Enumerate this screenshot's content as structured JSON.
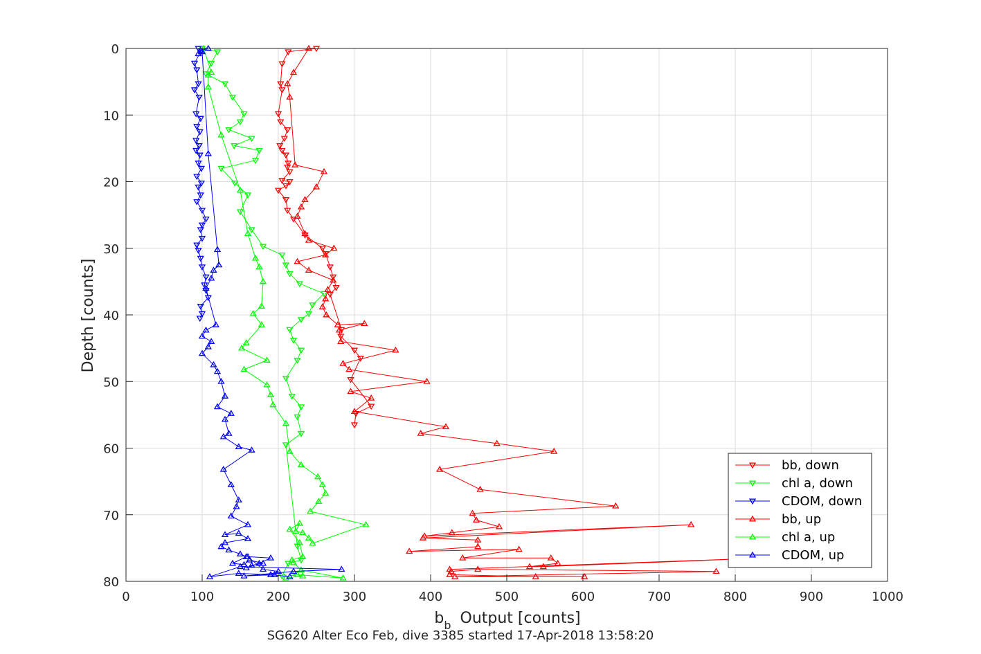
{
  "chart_data": {
    "type": "line",
    "xlabel_base": "b",
    "xlabel_sub": "b",
    "xlabel_rest": "Output [counts]",
    "ylabel": "Depth [counts]",
    "caption": "SG620 Alter Eco Feb, dive 3385 started 17-Apr-2018 13:58:20",
    "xlim": [
      0,
      1000
    ],
    "ylim": [
      0,
      80
    ],
    "y_reversed": true,
    "grid": true,
    "legend_position": "bottom-right",
    "x_ticks": [
      "0",
      "100",
      "200",
      "300",
      "400",
      "500",
      "600",
      "700",
      "800",
      "900",
      "1000"
    ],
    "y_ticks": [
      "0",
      "10",
      "20",
      "30",
      "40",
      "50",
      "60",
      "70",
      "80"
    ],
    "series": [
      {
        "name": "bb, down",
        "color": "#ff0000",
        "marker": "down",
        "x": [
          250,
          213,
          205,
          203,
          205,
          200,
          203,
          212,
          208,
          202,
          205,
          210,
          213,
          212,
          215,
          205,
          215,
          210,
          200,
          210,
          212,
          220,
          235,
          258,
          262,
          268,
          272,
          276,
          268,
          283,
          282,
          300,
          308,
          295,
          322,
          302,
          300
        ],
        "y": [
          0,
          0.5,
          2.3,
          5.3,
          6.2,
          9.8,
          11,
          12.2,
          13.5,
          14.6,
          15.3,
          16,
          17.2,
          17.8,
          18.5,
          19.8,
          20,
          20.6,
          21.3,
          22.7,
          24.3,
          25.6,
          28,
          30,
          30.8,
          32.8,
          34.3,
          35.9,
          36.9,
          42.2,
          43.2,
          45.3,
          46.5,
          49.7,
          53.7,
          54.8,
          56.5
        ]
      },
      {
        "name": "chl a, down",
        "color": "#00ff00",
        "marker": "down",
        "x": [
          100,
          120,
          112,
          105,
          130,
          140,
          155,
          150,
          135,
          165,
          142,
          175,
          170,
          125,
          143,
          160,
          150,
          165,
          180,
          205,
          210,
          215,
          228,
          260,
          245,
          240,
          230,
          215,
          220,
          230,
          225,
          210,
          218,
          230,
          225,
          230,
          210,
          225,
          230,
          213,
          205
        ],
        "y": [
          0,
          0.5,
          2.2,
          3.8,
          5.3,
          7.3,
          9.8,
          11,
          12.2,
          13.5,
          14.6,
          15.3,
          16.8,
          18,
          20.2,
          22,
          24.5,
          27.2,
          29.7,
          31,
          32.5,
          33.8,
          35.3,
          36.8,
          38.5,
          39.8,
          40.7,
          42.2,
          43.8,
          45.3,
          46.8,
          49.5,
          52.2,
          53.8,
          55.3,
          57.8,
          59.5,
          74.7,
          76.8,
          77.3,
          79.2
        ]
      },
      {
        "name": "CDOM, down",
        "color": "#0000ff",
        "marker": "down",
        "x": [
          95,
          98,
          90,
          93,
          95,
          90,
          96,
          92,
          98,
          93,
          97,
          92,
          96,
          92,
          97,
          95,
          99,
          93,
          99,
          95,
          98,
          93,
          100,
          105,
          100,
          98,
          100,
          93,
          95,
          98,
          100,
          105,
          103,
          105,
          108,
          98,
          100,
          97
        ],
        "y": [
          0,
          0.5,
          2.2,
          3.2,
          5.3,
          6.2,
          7.3,
          9.8,
          10.5,
          11.7,
          12.5,
          13.8,
          14.6,
          15.3,
          16,
          17.2,
          18,
          19.2,
          20.2,
          20.8,
          22,
          23,
          24.3,
          25.6,
          26.5,
          27.2,
          28.5,
          29.5,
          30.3,
          31.5,
          32.8,
          34.3,
          35.5,
          36.3,
          37.4,
          38.7,
          39.8,
          40.5
        ]
      },
      {
        "name": "bb, up",
        "color": "#ff0000",
        "marker": "up",
        "x": [
          240,
          220,
          212,
          215,
          222,
          260,
          250,
          235,
          230,
          225,
          235,
          240,
          273,
          262,
          225,
          240,
          272,
          265,
          262,
          258,
          263,
          278,
          313,
          280,
          282,
          354,
          285,
          293,
          395,
          295,
          322,
          300,
          420,
          387,
          487,
          562,
          412,
          465,
          643,
          455,
          460,
          490,
          428,
          392,
          742,
          390,
          462,
          462,
          372,
          516,
          442,
          558,
          567,
          530,
          548,
          838,
          425,
          427,
          462,
          775,
          432,
          602,
          538,
          425
        ],
        "y": [
          0,
          3.6,
          5.3,
          7.3,
          17.5,
          18.5,
          20.8,
          22.7,
          23.8,
          25.2,
          27.8,
          28.8,
          30,
          31,
          32,
          33.3,
          34.8,
          36.2,
          37.6,
          38.8,
          40,
          41.5,
          41.3,
          42.3,
          44,
          45.3,
          47.3,
          48.2,
          50,
          51.5,
          52.5,
          54.5,
          56.8,
          57.8,
          59.3,
          60.5,
          63.2,
          66.2,
          68.7,
          69.8,
          70.8,
          71.8,
          72.7,
          73.2,
          71.5,
          73.5,
          73.8,
          74.8,
          75.5,
          75.2,
          76.5,
          76.5,
          77.3,
          77.8,
          77.8,
          76.5,
          78.2,
          78.5,
          78.2,
          78.5,
          79.3,
          79.3,
          79.3,
          79
        ]
      },
      {
        "name": "chl a, up",
        "color": "#00ff00",
        "marker": "up",
        "x": [
          102,
          112,
          108,
          108,
          125,
          150,
          160,
          170,
          175,
          180,
          178,
          167,
          178,
          158,
          152,
          185,
          155,
          185,
          190,
          193,
          210,
          215,
          230,
          252,
          258,
          262,
          253,
          242,
          315,
          245,
          240,
          232,
          223,
          228,
          215,
          228,
          232,
          218,
          220,
          230,
          285,
          225,
          218,
          232,
          210
        ],
        "y": [
          0,
          3.6,
          4,
          5.8,
          13,
          21.3,
          27.8,
          31.5,
          32.8,
          35,
          38.7,
          39.8,
          41.5,
          44.2,
          45,
          46.8,
          48.2,
          50.5,
          52,
          53.5,
          56.3,
          60.5,
          62.5,
          64.3,
          65.5,
          66.8,
          68,
          69.5,
          71.5,
          74.3,
          73.5,
          72.7,
          72.5,
          71.3,
          72.2,
          74.2,
          76.3,
          76.8,
          77.2,
          78.3,
          79.5,
          79,
          78.8,
          79.2,
          79.5
        ]
      },
      {
        "name": "CDOM, up",
        "color": "#0000ff",
        "marker": "up",
        "x": [
          108,
          98,
          95,
          100,
          108,
          120,
          122,
          115,
          112,
          105,
          118,
          105,
          100,
          112,
          108,
          100,
          115,
          120,
          125,
          130,
          120,
          138,
          130,
          135,
          128,
          148,
          165,
          128,
          138,
          148,
          145,
          138,
          160,
          130,
          148,
          160,
          130,
          125,
          135,
          150,
          158,
          140,
          155,
          162,
          180,
          165,
          158,
          175,
          190,
          160,
          180,
          200,
          195,
          155,
          220,
          283,
          150,
          110,
          148,
          190,
          215
        ],
        "y": [
          0,
          0.3,
          0.8,
          0.5,
          15.8,
          30.2,
          32.5,
          33.3,
          34.5,
          36,
          41.5,
          42.3,
          43.2,
          44,
          44.8,
          45.8,
          47.5,
          48.5,
          50,
          52.2,
          53.8,
          54.8,
          55.7,
          57.8,
          58.3,
          59.8,
          60.3,
          63.2,
          65.5,
          67.8,
          68.8,
          70.2,
          71.5,
          73,
          72.8,
          73.6,
          74.2,
          74.8,
          75.3,
          75.9,
          76.3,
          77.3,
          77.5,
          76.8,
          77.3,
          77.6,
          78,
          77.3,
          76.5,
          76.3,
          78.2,
          78.5,
          79,
          79.2,
          78.5,
          78.2,
          77.8,
          79.3,
          78.8,
          79,
          79.3
        ]
      }
    ]
  }
}
